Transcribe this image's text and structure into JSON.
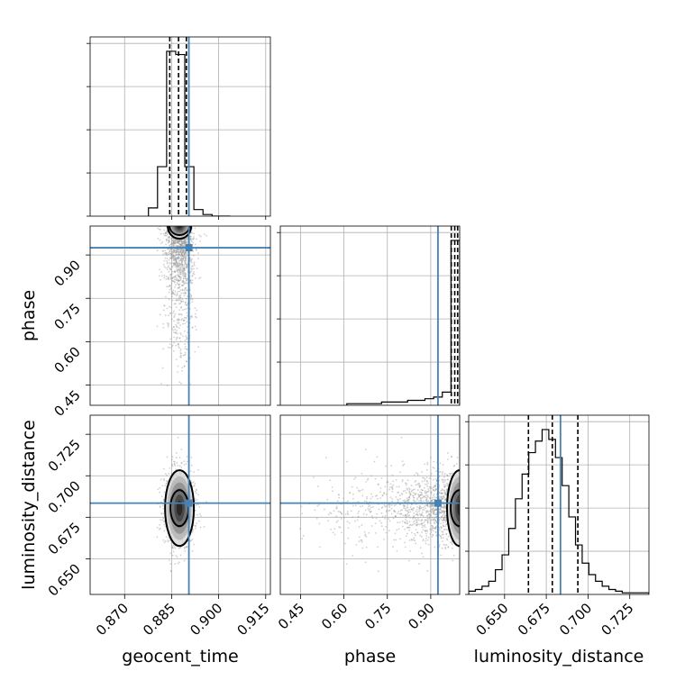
{
  "chart_data": {
    "type": "corner",
    "parameters": [
      "geocent_time",
      "phase",
      "luminosity_distance"
    ],
    "axis_labels": {
      "geocent_time": "geocent_time",
      "phase": "phase",
      "luminosity_distance": "luminosity_distance"
    },
    "ranges": {
      "geocent_time": [
        0.859,
        0.9165
      ],
      "phase": [
        0.38,
        1.0
      ],
      "luminosity_distance": [
        0.6285,
        0.7365
      ]
    },
    "ticks": {
      "geocent_time": [
        "0.870",
        "0.885",
        "0.900",
        "0.915"
      ],
      "phase": [
        "0.45",
        "0.60",
        "0.75",
        "0.90"
      ],
      "luminosity_distance": [
        "0.650",
        "0.675",
        "0.700",
        "0.725"
      ]
    },
    "truths": {
      "geocent_time": 0.8905,
      "phase": 0.925,
      "luminosity_distance": 0.6835
    },
    "quantiles": {
      "geocent_time": [
        0.8844,
        0.8872,
        0.8897
      ],
      "phase": [
        0.971,
        0.983,
        0.993
      ],
      "luminosity_distance": [
        0.6643,
        0.6786,
        0.6939
      ]
    },
    "histograms": {
      "geocent_time": {
        "edges": [
          0.8776,
          0.8805,
          0.8834,
          0.8863,
          0.8892,
          0.8921,
          0.895,
          0.8979,
          0.9008,
          0.9037
        ],
        "counts": [
          5,
          30,
          100,
          98,
          30,
          4,
          1,
          0,
          0
        ]
      },
      "phase": {
        "edges": [
          0.61,
          0.64,
          0.67,
          0.7,
          0.73,
          0.76,
          0.79,
          0.82,
          0.85,
          0.88,
          0.91,
          0.94,
          0.97,
          1.0
        ],
        "counts": [
          1,
          1,
          1,
          1,
          2,
          2,
          2,
          3,
          3,
          4,
          5,
          8,
          100
        ]
      },
      "luminosity_distance": {
        "edges": [
          0.6285,
          0.6325,
          0.6365,
          0.6405,
          0.6445,
          0.6485,
          0.6525,
          0.6565,
          0.6605,
          0.6645,
          0.6685,
          0.6725,
          0.6765,
          0.6805,
          0.6845,
          0.6885,
          0.6925,
          0.6965,
          0.7005,
          0.7045,
          0.7085,
          0.7125,
          0.7165,
          0.7205,
          0.7245,
          0.7285,
          0.7325,
          0.7365
        ],
        "counts": [
          2,
          3,
          5,
          8,
          15,
          24,
          40,
          58,
          73,
          86,
          93,
          100,
          94,
          83,
          66,
          47,
          30,
          19,
          12,
          8,
          5,
          3,
          2,
          1,
          1,
          1,
          1
        ]
      }
    },
    "contour_levels": [
      0.39,
      0.86
    ],
    "grid": true,
    "truth_color": "#4682b4",
    "point_color": "#999999",
    "density_color": "#000000"
  }
}
